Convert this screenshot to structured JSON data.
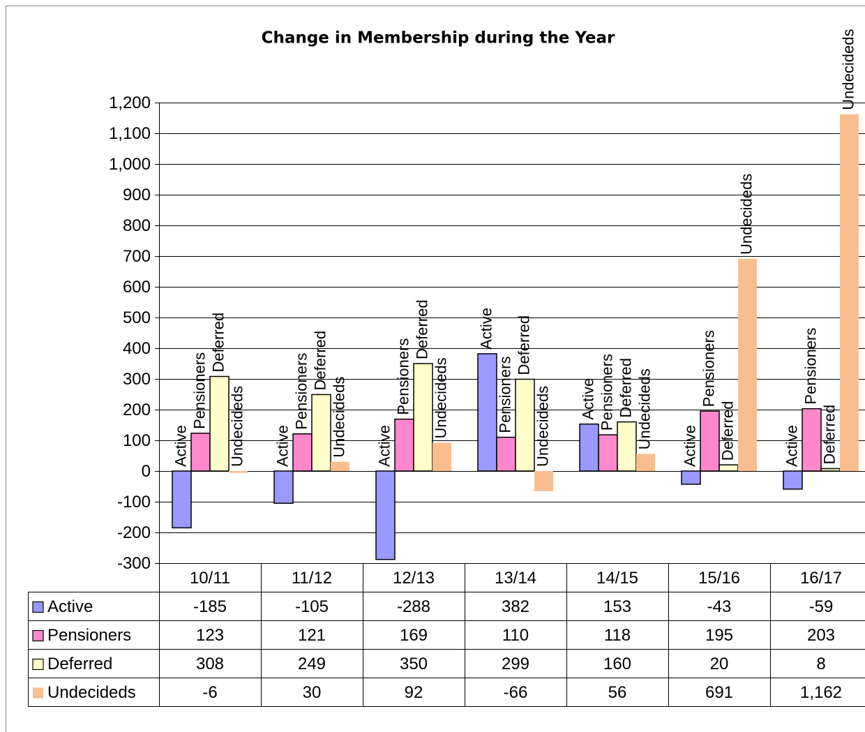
{
  "chart_data": {
    "type": "bar",
    "title": "Change in Membership during the Year",
    "categories": [
      "10/11",
      "11/12",
      "12/13",
      "13/14",
      "14/15",
      "15/16",
      "16/17"
    ],
    "series": [
      {
        "name": "Active",
        "color": "#9999ff",
        "values": [
          -185,
          -105,
          -288,
          382,
          153,
          -43,
          -59
        ]
      },
      {
        "name": "Pensioners",
        "color": "#ff88cc",
        "values": [
          123,
          121,
          169,
          110,
          118,
          195,
          203
        ]
      },
      {
        "name": "Deferred",
        "color": "#ffffcc",
        "values": [
          308,
          249,
          350,
          299,
          160,
          20,
          8
        ]
      },
      {
        "name": "Undecideds",
        "color": "#f9be8f",
        "values": [
          -6,
          30,
          92,
          -66,
          56,
          691,
          1162
        ],
        "value_labels": [
          "-6",
          "30",
          "92",
          "-66",
          "56",
          "691",
          "1,162"
        ]
      }
    ],
    "ylim": [
      -300,
      1200
    ],
    "yticks": [
      -300,
      -200,
      -100,
      0,
      100,
      200,
      300,
      400,
      500,
      600,
      700,
      800,
      900,
      {
        "value": 1000,
        "label": "1,000"
      },
      {
        "value": 1100,
        "label": "1,100"
      },
      {
        "value": 1200,
        "label": "1,200"
      }
    ],
    "grid": true,
    "data_table": true
  }
}
